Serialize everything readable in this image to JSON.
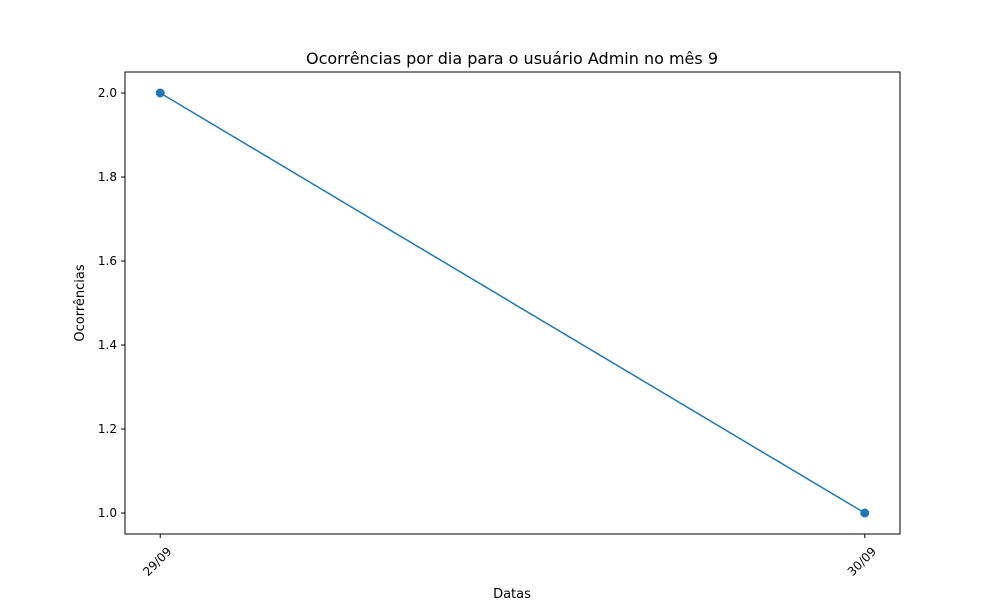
{
  "chart_data": {
    "type": "line",
    "title": "Ocorrências por dia para o usuário Admin no mês 9",
    "xlabel": "Datas",
    "ylabel": "Ocorrências",
    "categories": [
      "29/09",
      "30/09"
    ],
    "series": [
      {
        "values": [
          2,
          1
        ],
        "color": "#1f77b4",
        "marker": "circle"
      }
    ],
    "ylim": [
      0.95,
      2.05
    ],
    "yticks": [
      "1.0",
      "1.2",
      "1.4",
      "1.6",
      "1.8",
      "2.0"
    ],
    "x_tick_rotation_deg": 45,
    "grid": false,
    "legend": "none"
  }
}
